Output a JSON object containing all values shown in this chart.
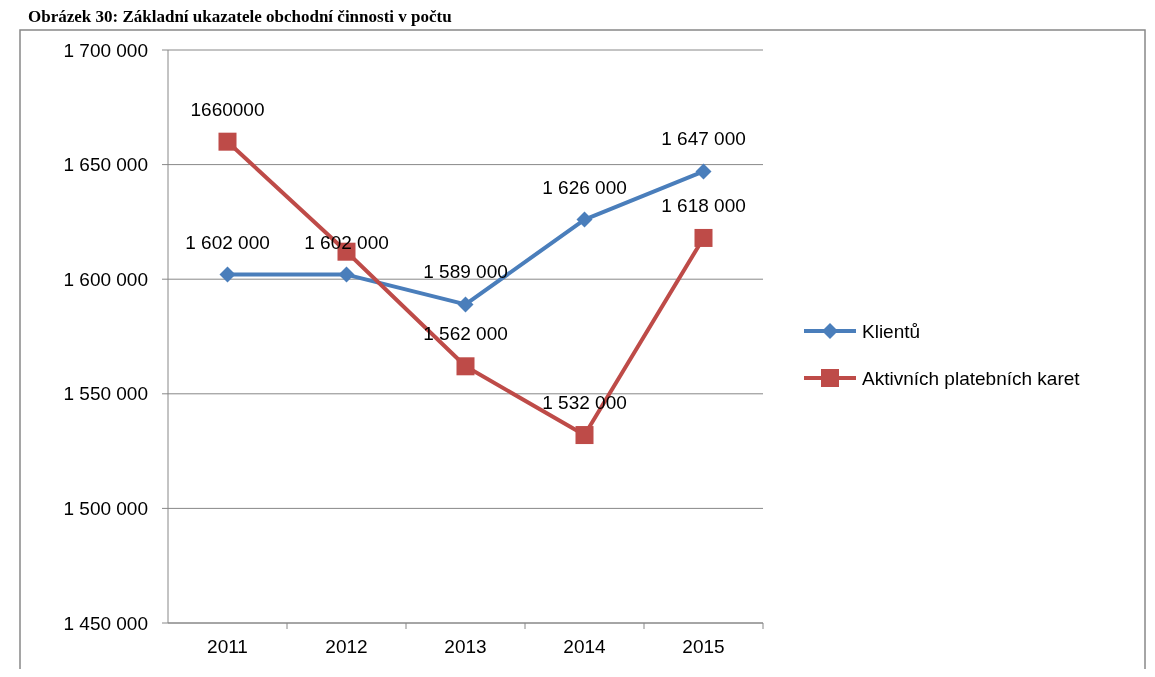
{
  "chart_data": {
    "type": "line",
    "title": "Obrázek 30: Základní ukazatele obchodní činnosti v počtu",
    "categories": [
      "2011",
      "2012",
      "2013",
      "2014",
      "2015"
    ],
    "series": [
      {
        "name": "Klientů",
        "color": "#4a7ebb",
        "marker": "diamond",
        "values": [
          1602000,
          1602000,
          1589000,
          1626000,
          1647000
        ],
        "value_labels": [
          "1 602 000",
          "1 602 000",
          "1 589 000",
          "1 626 000",
          "1 647 000"
        ]
      },
      {
        "name": "Aktivních platebních karet",
        "color": "#be4b48",
        "marker": "square",
        "values": [
          1660000,
          1612000,
          1562000,
          1532000,
          1618000
        ],
        "value_labels": [
          "1660000",
          null,
          "1 562 000",
          "1 532 000",
          "1 618 000"
        ]
      }
    ],
    "ylim": [
      1450000,
      1700000
    ],
    "yticks": [
      {
        "value": 1450000,
        "label": "1 450 000"
      },
      {
        "value": 1500000,
        "label": "1 500 000"
      },
      {
        "value": 1550000,
        "label": "1 550 000"
      },
      {
        "value": 1600000,
        "label": "1 600 000"
      },
      {
        "value": 1650000,
        "label": "1 650 000"
      },
      {
        "value": 1700000,
        "label": "1 700 000"
      }
    ],
    "grid": "y",
    "legend": "right"
  }
}
